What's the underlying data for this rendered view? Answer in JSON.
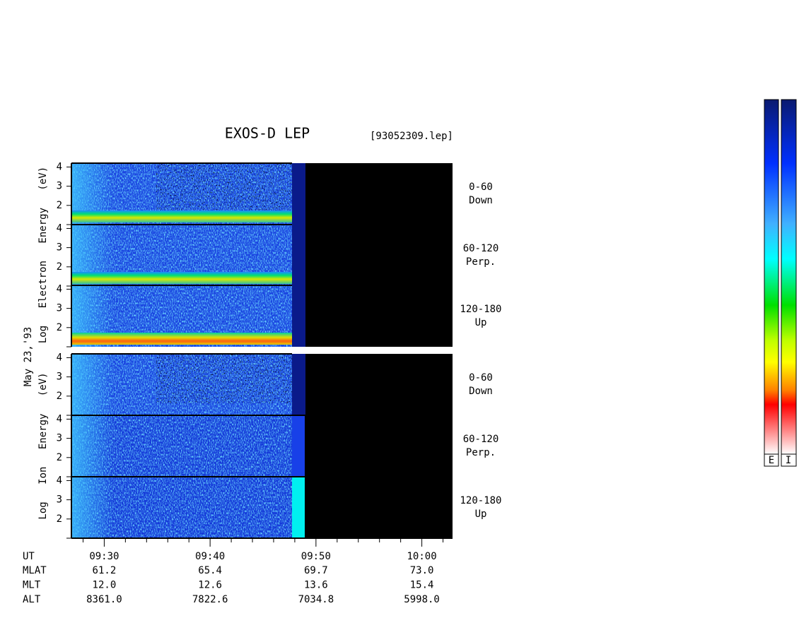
{
  "chart_data": {
    "type": "spectrogram",
    "title": "EXOS-D LEP",
    "file_label": "[93052309.lep]",
    "date_label": "May 23,'93",
    "groups": [
      {
        "y_label": "Log Electron Energy (eV)",
        "panels": [
          {
            "angle": "0-60",
            "direction": "Down"
          },
          {
            "angle": "60-120",
            "direction": "Perp."
          },
          {
            "angle": "120-180",
            "direction": "Up"
          }
        ]
      },
      {
        "y_label": "Log Ion Energy (eV)",
        "panels": [
          {
            "angle": "0-60",
            "direction": "Down"
          },
          {
            "angle": "60-120",
            "direction": "Perp."
          },
          {
            "angle": "120-180",
            "direction": "Up"
          }
        ]
      }
    ],
    "ylim": [
      1,
      4.2
    ],
    "yticks": [
      2,
      3,
      4
    ],
    "xlim": [
      566.9,
      602.9
    ],
    "xticks": [
      {
        "value": 570,
        "label": "09:30"
      },
      {
        "value": 580,
        "label": "09:40"
      },
      {
        "value": 590,
        "label": "09:50"
      },
      {
        "value": 600,
        "label": "10:00"
      }
    ],
    "xminorticks": [
      568,
      572,
      574,
      576,
      578,
      582,
      584,
      586,
      588,
      592,
      594,
      596,
      598,
      602
    ],
    "ut_label": "UT",
    "orbit_rows": [
      {
        "name": "MLAT",
        "values": [
          "61.2",
          "65.4",
          "69.7",
          "73.0"
        ]
      },
      {
        "name": "MLT",
        "values": [
          "12.0",
          "12.6",
          "13.6",
          "15.4"
        ]
      },
      {
        "name": "ALT",
        "values": [
          "8361.0",
          "7822.6",
          "7034.8",
          "5998.0"
        ]
      }
    ],
    "colorbar_labels": [
      "E",
      "I"
    ]
  }
}
